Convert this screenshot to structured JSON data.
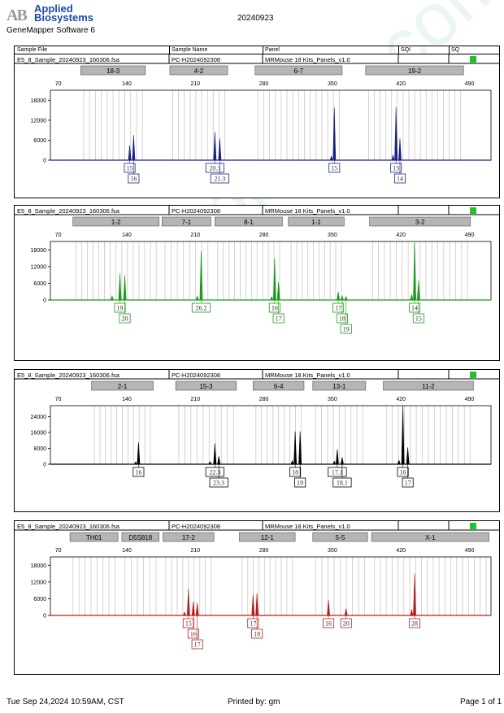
{
  "header": {
    "logo_mark": "AB",
    "company_line1": "Applied",
    "company_line2": "Biosystems",
    "software": "GeneMapper Software 6",
    "report_date": "20240923"
  },
  "columns": {
    "file": "Sample File",
    "sample": "Sample Name",
    "panel": "Panel",
    "sqi": "SQI",
    "sq": "SQ"
  },
  "footer": {
    "printed_at": "Tue Sep 24,2024 10:59AM, CST",
    "printed_by": "Printed by: gm",
    "page": "Page 1 of 1"
  },
  "watermark": "www.procell.com.cn",
  "chart_data": [
    {
      "type": "line",
      "sample_file": "E5_8_Sample_20240923_160306.fsa",
      "sample_name": "PC-H2024092308",
      "panel": "MRMouse 18 Kits_Panels_v1.0",
      "sq_color": "#22c22a",
      "color": "#1a237e",
      "xlim": [
        62,
        512
      ],
      "x_ticks": [
        70,
        140,
        210,
        280,
        350,
        420,
        490
      ],
      "ylim": [
        0,
        21000
      ],
      "y_ticks": [
        0,
        6000,
        12000,
        18000
      ],
      "markers": [
        {
          "label": "18-3",
          "from": 93,
          "to": 159
        },
        {
          "label": "4-2",
          "from": 184,
          "to": 243
        },
        {
          "label": "6-7",
          "from": 271,
          "to": 360
        },
        {
          "label": "19-2",
          "from": 384,
          "to": 484
        }
      ],
      "peaks": [
        {
          "x": 143,
          "y": 4500
        },
        {
          "x": 147,
          "y": 7500
        },
        {
          "x": 230,
          "y": 8500
        },
        {
          "x": 235,
          "y": 6500
        },
        {
          "x": 349,
          "y": 1200
        },
        {
          "x": 352,
          "y": 15800
        },
        {
          "x": 412,
          "y": 1500
        },
        {
          "x": 415,
          "y": 16000
        },
        {
          "x": 419,
          "y": 6500
        }
      ],
      "alleles": [
        {
          "x": 143,
          "label": "15",
          "row": 0
        },
        {
          "x": 147,
          "label": "16",
          "row": 1
        },
        {
          "x": 230,
          "label": "20.3",
          "row": 0
        },
        {
          "x": 235,
          "label": "21.3",
          "row": 1
        },
        {
          "x": 352,
          "label": "15",
          "row": 0
        },
        {
          "x": 415,
          "label": "13",
          "row": 0
        },
        {
          "x": 419,
          "label": "14",
          "row": 1
        }
      ]
    },
    {
      "type": "line",
      "sample_file": "E5_8_Sample_20240923_160306.fsa",
      "sample_name": "PC-H2024092308",
      "panel": "MRMouse 18 Kits_Panels_v1.0",
      "sq_color": "#22c22a",
      "color": "#1b9a1b",
      "xlim": [
        62,
        512
      ],
      "x_ticks": [
        70,
        140,
        210,
        280,
        350,
        420,
        490
      ],
      "ylim": [
        0,
        21000
      ],
      "y_ticks": [
        0,
        6000,
        12000,
        18000
      ],
      "markers": [
        {
          "label": "1-2",
          "from": 85,
          "to": 173
        },
        {
          "label": "7-1",
          "from": 176,
          "to": 226
        },
        {
          "label": "8-1",
          "from": 230,
          "to": 299
        },
        {
          "label": "1-1",
          "from": 305,
          "to": 362
        },
        {
          "label": "3-2",
          "from": 388,
          "to": 491
        }
      ],
      "peaks": [
        {
          "x": 125,
          "y": 1500
        },
        {
          "x": 133,
          "y": 9500
        },
        {
          "x": 138,
          "y": 9000
        },
        {
          "x": 212,
          "y": 1400
        },
        {
          "x": 216,
          "y": 17500
        },
        {
          "x": 288,
          "y": 1200
        },
        {
          "x": 291,
          "y": 15000
        },
        {
          "x": 295,
          "y": 6500
        },
        {
          "x": 356,
          "y": 3000
        },
        {
          "x": 360,
          "y": 1500
        },
        {
          "x": 364,
          "y": 1200
        },
        {
          "x": 431,
          "y": 2000
        },
        {
          "x": 434,
          "y": 20500
        },
        {
          "x": 438,
          "y": 7000
        }
      ],
      "alleles": [
        {
          "x": 133,
          "label": "19",
          "row": 0
        },
        {
          "x": 138,
          "label": "20",
          "row": 1
        },
        {
          "x": 216,
          "label": "26.2",
          "row": 0
        },
        {
          "x": 291,
          "label": "16",
          "row": 0
        },
        {
          "x": 295,
          "label": "17",
          "row": 1
        },
        {
          "x": 356,
          "label": "17",
          "row": 0
        },
        {
          "x": 360,
          "label": "18",
          "row": 1
        },
        {
          "x": 364,
          "label": "19",
          "row": 2
        },
        {
          "x": 434,
          "label": "14",
          "row": 0
        },
        {
          "x": 438,
          "label": "15",
          "row": 1
        }
      ]
    },
    {
      "type": "line",
      "sample_file": "E5_8_Sample_20240923_160306.fsa",
      "sample_name": "PC-H2024092308",
      "panel": "MRMouse 18 Kits_Panels_v1.0",
      "sq_color": "#22c22a",
      "color": "#000000",
      "xlim": [
        62,
        512
      ],
      "x_ticks": [
        70,
        140,
        210,
        280,
        350,
        420,
        490
      ],
      "ylim": [
        0,
        29500
      ],
      "y_ticks": [
        0,
        8000,
        16000,
        24000
      ],
      "markers": [
        {
          "label": "2-1",
          "from": 104,
          "to": 167
        },
        {
          "label": "15-3",
          "from": 190,
          "to": 252
        },
        {
          "label": "6-4",
          "from": 269,
          "to": 321
        },
        {
          "label": "13-1",
          "from": 330,
          "to": 384
        },
        {
          "label": "11-2",
          "from": 402,
          "to": 494
        }
      ],
      "peaks": [
        {
          "x": 149,
          "y": 1200
        },
        {
          "x": 152,
          "y": 11000
        },
        {
          "x": 225,
          "y": 1300
        },
        {
          "x": 230,
          "y": 10500
        },
        {
          "x": 234,
          "y": 4000
        },
        {
          "x": 309,
          "y": 1800
        },
        {
          "x": 312,
          "y": 16500
        },
        {
          "x": 317,
          "y": 16500
        },
        {
          "x": 352,
          "y": 1500
        },
        {
          "x": 355,
          "y": 7500
        },
        {
          "x": 360,
          "y": 3500
        },
        {
          "x": 418,
          "y": 2000
        },
        {
          "x": 422,
          "y": 29500
        },
        {
          "x": 427,
          "y": 8500
        }
      ],
      "alleles": [
        {
          "x": 152,
          "label": "16",
          "row": 0
        },
        {
          "x": 230,
          "label": "22.3",
          "row": 0
        },
        {
          "x": 234,
          "label": "23.3",
          "row": 1
        },
        {
          "x": 312,
          "label": "18",
          "row": 0
        },
        {
          "x": 317,
          "label": "19",
          "row": 1
        },
        {
          "x": 355,
          "label": "17.1",
          "row": 0
        },
        {
          "x": 360,
          "label": "18.1",
          "row": 1
        },
        {
          "x": 422,
          "label": "16",
          "row": 0
        },
        {
          "x": 427,
          "label": "17",
          "row": 1
        }
      ]
    },
    {
      "type": "line",
      "sample_file": "E5_8_Sample_20240923_160306.fsa",
      "sample_name": "PC-H2024092308",
      "panel": "MRMouse 18 Kits_Panels_v1.0",
      "sq_color": "#22c22a",
      "color": "#b71c1c",
      "xlim": [
        62,
        512
      ],
      "x_ticks": [
        70,
        140,
        210,
        280,
        350,
        420,
        490
      ],
      "ylim": [
        0,
        21000
      ],
      "y_ticks": [
        0,
        6000,
        12000,
        18000
      ],
      "markers": [
        {
          "label": "TH01",
          "from": 82,
          "to": 131
        },
        {
          "label": "D5S818",
          "from": 135,
          "to": 173
        },
        {
          "label": "17-2",
          "from": 177,
          "to": 229
        },
        {
          "label": "12-1",
          "from": 255,
          "to": 312
        },
        {
          "label": "5-5",
          "from": 330,
          "to": 386
        },
        {
          "label": "X-1",
          "from": 390,
          "to": 510
        }
      ],
      "peaks": [
        {
          "x": 199,
          "y": 1200
        },
        {
          "x": 203,
          "y": 9500
        },
        {
          "x": 208,
          "y": 5000
        },
        {
          "x": 212,
          "y": 4500
        },
        {
          "x": 269,
          "y": 7500
        },
        {
          "x": 273,
          "y": 8000
        },
        {
          "x": 346,
          "y": 5500
        },
        {
          "x": 364,
          "y": 2500
        },
        {
          "x": 431,
          "y": 2200
        },
        {
          "x": 434,
          "y": 15000
        }
      ],
      "alleles": [
        {
          "x": 203,
          "label": "15",
          "row": 0
        },
        {
          "x": 208,
          "label": "16",
          "row": 1
        },
        {
          "x": 212,
          "label": "17",
          "row": 2
        },
        {
          "x": 269,
          "label": "17",
          "row": 0
        },
        {
          "x": 273,
          "label": "18",
          "row": 1
        },
        {
          "x": 346,
          "label": "16",
          "row": 0
        },
        {
          "x": 364,
          "label": "20",
          "row": 0
        },
        {
          "x": 434,
          "label": "28",
          "row": 0
        }
      ]
    }
  ]
}
